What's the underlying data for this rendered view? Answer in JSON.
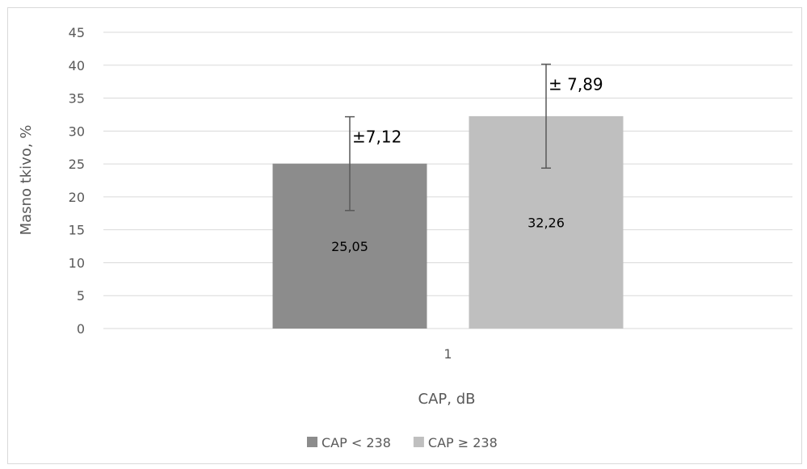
{
  "chart_data": {
    "type": "bar",
    "categories": [
      "1"
    ],
    "series": [
      {
        "name": "CAP < 238",
        "values": [
          25.05
        ],
        "error": [
          7.12
        ],
        "value_label": "25,05",
        "error_label": "±7,12",
        "color": "#8c8c8c"
      },
      {
        "name": "CAP ≥ 238",
        "values": [
          32.26
        ],
        "error": [
          7.89
        ],
        "value_label": "32,26",
        "error_label": "± 7,89",
        "color": "#bfbfbf"
      }
    ],
    "xlabel": "CAP, dB",
    "ylabel": "Masno tkivo, %",
    "ylim": [
      0,
      45
    ],
    "yticks": [
      0,
      5,
      10,
      15,
      20,
      25,
      30,
      35,
      40,
      45
    ],
    "grid": true,
    "legend_position": "bottom"
  },
  "colors": {
    "gridline": "#d9d9d9",
    "error_bar": "#595959"
  }
}
